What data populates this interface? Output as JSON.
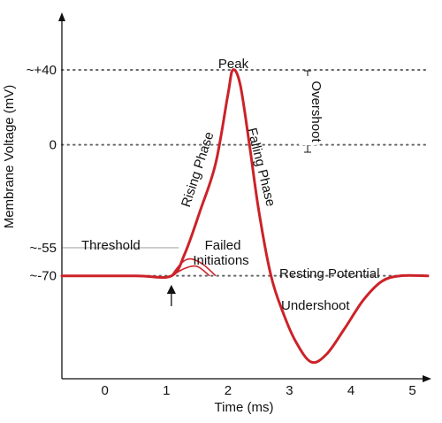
{
  "chart_data": {
    "type": "line",
    "title": "",
    "xlabel": "Time (ms)",
    "ylabel": "Membrane Voltage (mV)",
    "xlim": [
      -0.7,
      5.25
    ],
    "ylim": [
      -125,
      75
    ],
    "x_ticks": [
      {
        "value": 0,
        "label": "0"
      },
      {
        "value": 1,
        "label": "1"
      },
      {
        "value": 2,
        "label": "2"
      },
      {
        "value": 3,
        "label": "3"
      },
      {
        "value": 4,
        "label": "4"
      },
      {
        "value": 5,
        "label": "5"
      }
    ],
    "y_ticks": [
      {
        "value": 40,
        "label": "~+40"
      },
      {
        "value": 0,
        "label": "0"
      },
      {
        "value": -55,
        "label": "~-55"
      },
      {
        "value": -70,
        "label": "~-70"
      }
    ],
    "series": [
      {
        "color": "#cc2229",
        "x": [
          -0.7,
          0.5,
          1.08,
          1.3,
          1.55,
          1.8,
          2.0,
          2.08,
          2.2,
          2.35,
          2.5,
          2.7,
          2.9,
          3.1,
          3.35,
          3.6,
          3.9,
          4.2,
          4.5,
          4.8,
          5.25
        ],
        "y": [
          -70,
          -70,
          -70,
          -58,
          -35,
          -10,
          27,
          40,
          32,
          0,
          -35,
          -70,
          -90,
          -105,
          -116,
          -112,
          -98,
          -83,
          -73,
          -70,
          -70
        ]
      }
    ],
    "failed_initiations": [
      {
        "x": [
          1.08,
          1.25,
          1.4,
          1.6,
          1.8
        ],
        "y": [
          -70,
          -63,
          -61,
          -64,
          -70
        ]
      },
      {
        "x": [
          1.08,
          1.3,
          1.5,
          1.7
        ],
        "y": [
          -70,
          -66,
          -65,
          -70
        ]
      }
    ],
    "reference_lines": [
      {
        "value": 40,
        "style": "dotted"
      },
      {
        "value": 0,
        "style": "dotted"
      },
      {
        "value": -55,
        "style": "solid-gray",
        "x_end": 1.2
      },
      {
        "value": -70,
        "style": "dotted"
      }
    ],
    "annotations": {
      "peak": "Peak",
      "rising_phase": "Rising Phase",
      "falling_phase": "Falling Phase",
      "overshoot": "Overshoot",
      "threshold": "Threshold",
      "failed_initiations_line1": "Failed",
      "failed_initiations_line2": "Initiations",
      "resting_potential": "Resting Potential",
      "undershoot": "Undershoot"
    },
    "stimulus_arrow_x": 1.08,
    "colors": {
      "curve": "#cc2229",
      "guides": "#666666",
      "axes": "#111111"
    }
  }
}
